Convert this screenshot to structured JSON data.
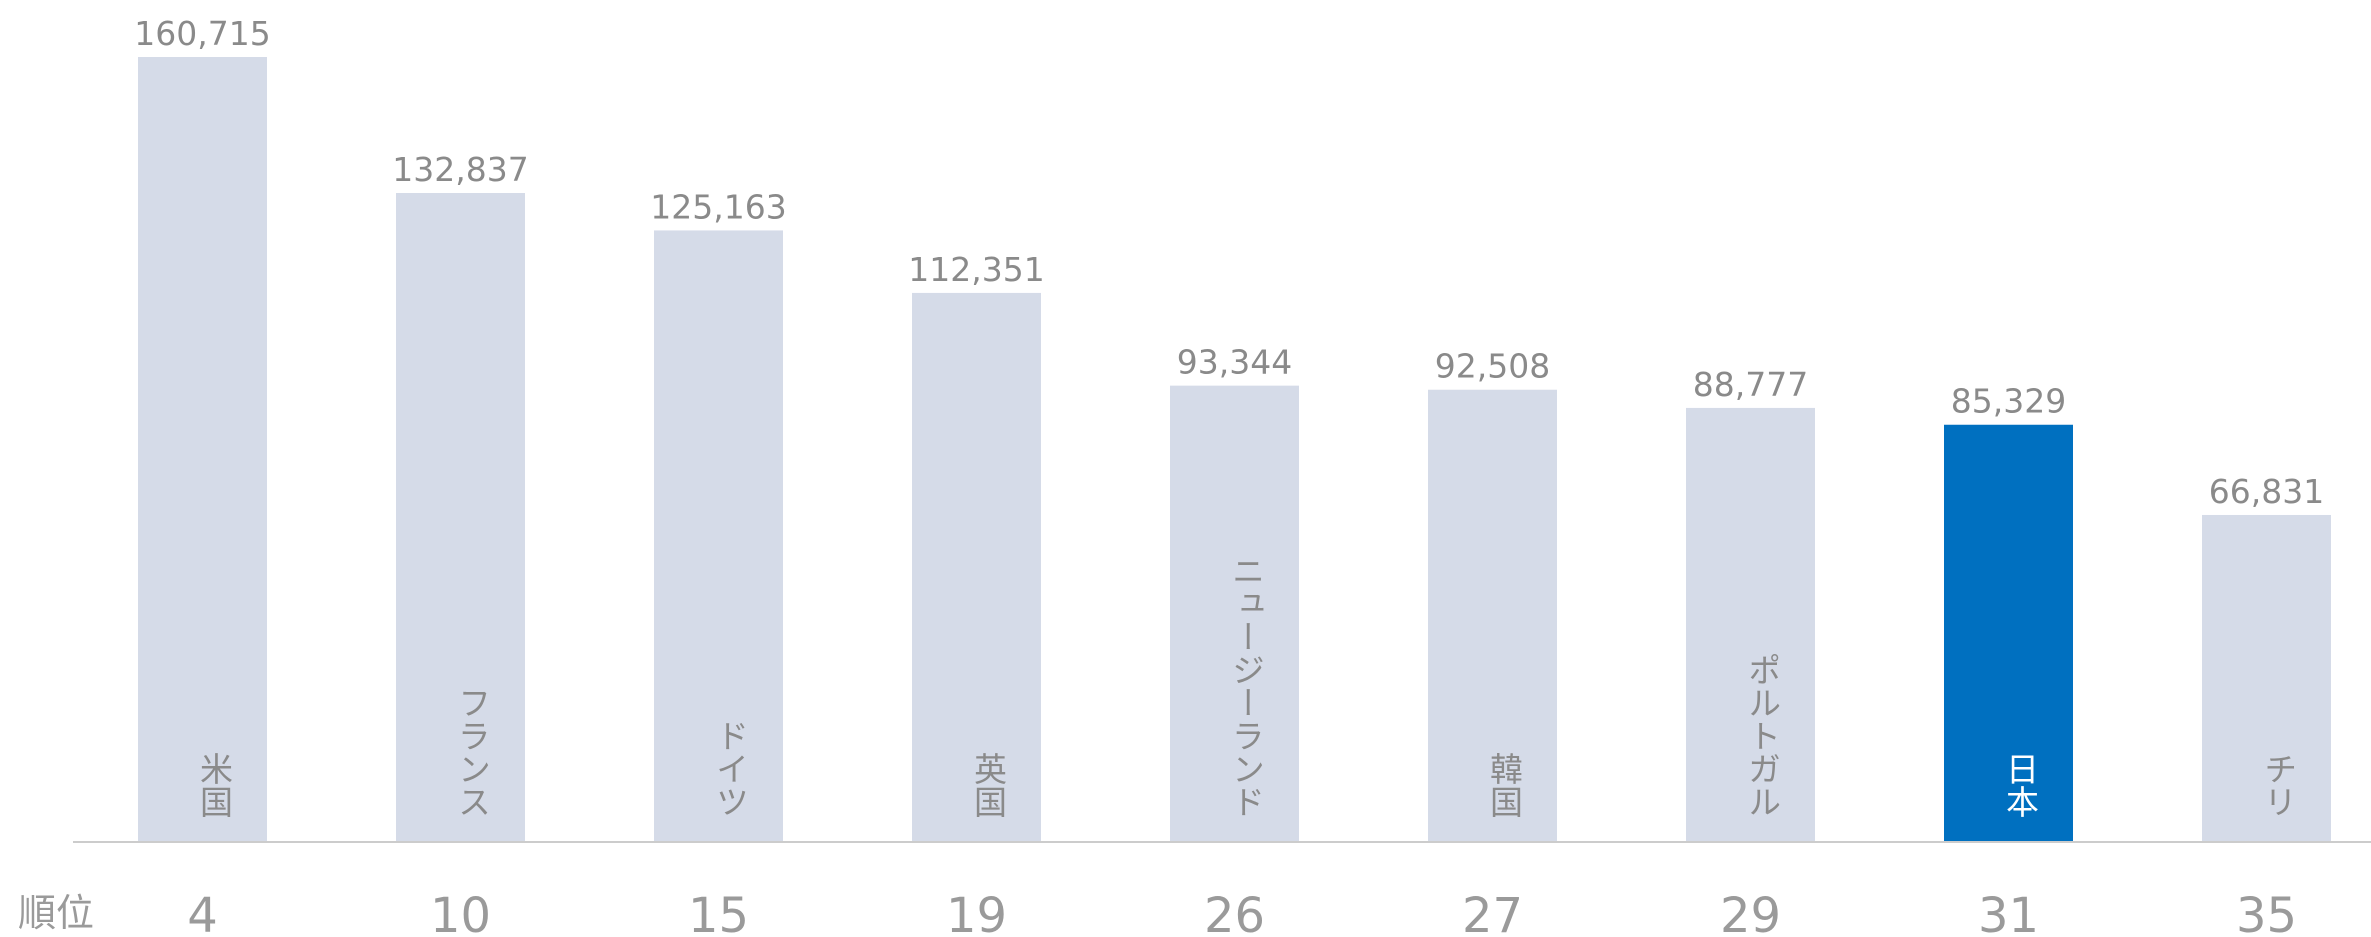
{
  "chart_data": {
    "type": "bar",
    "categories": [
      "米国",
      "フランス",
      "ドイツ",
      "英国",
      "ニュージーランド",
      "韓国",
      "ポルトガル",
      "日本",
      "チリ"
    ],
    "values": [
      160715,
      132837,
      125163,
      112351,
      93344,
      92508,
      88777,
      85329,
      66831
    ],
    "value_labels": [
      "160,715",
      "132,837",
      "125,163",
      "112,351",
      "93,344",
      "92,508",
      "88,777",
      "85,329",
      "66,831"
    ],
    "colors": [
      "#d5dbe8",
      "#d5dbe8",
      "#d5dbe8",
      "#d5dbe8",
      "#d5dbe8",
      "#d5dbe8",
      "#d5dbe8",
      "#0070c0",
      "#d5dbe8"
    ],
    "rank_label": "順位",
    "ranks": [
      4,
      10,
      15,
      19,
      26,
      27,
      29,
      31,
      35
    ]
  }
}
